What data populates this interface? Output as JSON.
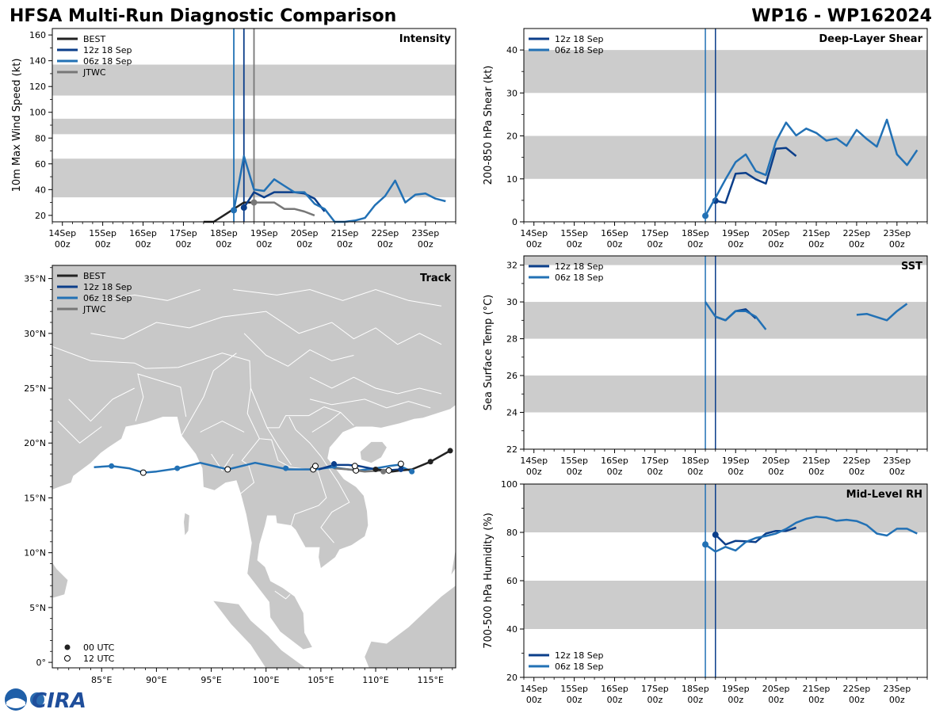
{
  "header": {
    "title": "HFSA Multi-Run Diagnostic Comparison",
    "storm_id": "WP16 - WP162024"
  },
  "logo": {
    "text": "CIRA"
  },
  "colors": {
    "best": "#222222",
    "run12": "#0b3e8a",
    "run06": "#2271b5",
    "jtwc": "#777777",
    "band": "#cccccc",
    "land": "#c8c8c8",
    "border": "#ffffff"
  },
  "time_axis": {
    "labels": [
      {
        "day": "14Sep",
        "hour": "00z",
        "t": 0
      },
      {
        "day": "15Sep",
        "hour": "00z",
        "t": 1
      },
      {
        "day": "16Sep",
        "hour": "00z",
        "t": 2
      },
      {
        "day": "17Sep",
        "hour": "00z",
        "t": 3
      },
      {
        "day": "18Sep",
        "hour": "00z",
        "t": 4
      },
      {
        "day": "19Sep",
        "hour": "00z",
        "t": 5
      },
      {
        "day": "20Sep",
        "hour": "00z",
        "t": 6
      },
      {
        "day": "21Sep",
        "hour": "00z",
        "t": 7
      },
      {
        "day": "22Sep",
        "hour": "00z",
        "t": 8
      },
      {
        "day": "23Sep",
        "hour": "00z",
        "t": 9
      }
    ],
    "range": [
      -0.25,
      9.75
    ]
  },
  "chart_data": [
    {
      "id": "intensity",
      "type": "line",
      "title": "Intensity",
      "ylabel": "10m Max Wind Speed (kt)",
      "ylim": [
        15,
        165
      ],
      "yticks": [
        20,
        40,
        60,
        80,
        100,
        120,
        140,
        160
      ],
      "bands": [
        [
          34,
          64
        ],
        [
          83,
          95
        ],
        [
          113,
          137
        ]
      ],
      "vlines": [
        {
          "t": 4.25,
          "color_key": "run06",
          "width": 1.8
        },
        {
          "t": 4.5,
          "color_key": "run12",
          "width": 1.8
        },
        {
          "t": 4.75,
          "color_key": "jtwc",
          "width": 1.8
        }
      ],
      "legend": [
        {
          "label": "BEST",
          "color_key": "best"
        },
        {
          "label": "12z 18 Sep",
          "color_key": "run12"
        },
        {
          "label": "06z 18 Sep",
          "color_key": "run06"
        },
        {
          "label": "JTWC",
          "color_key": "jtwc"
        }
      ],
      "series": [
        {
          "name": "BEST",
          "color_key": "best",
          "t": [
            3.5,
            3.75,
            4.0,
            4.25,
            4.5,
            4.75
          ],
          "y": [
            15,
            15,
            20,
            25,
            30,
            30
          ]
        },
        {
          "name": "JTWC",
          "color_key": "jtwc",
          "t": [
            4.75,
            5.0,
            5.25,
            5.5,
            5.75,
            6.0,
            6.25
          ],
          "y": [
            30,
            30,
            30,
            25,
            25,
            23,
            20
          ],
          "marker_t": 4.75,
          "marker_y": 30
        },
        {
          "name": "12z 18 Sep",
          "color_key": "run12",
          "t": [
            4.5,
            4.75,
            5.0,
            5.25,
            5.5,
            5.75,
            6.0,
            6.25,
            6.5
          ],
          "y": [
            26,
            38,
            34,
            38,
            38,
            38,
            37,
            33,
            23
          ],
          "marker_t": 4.5,
          "marker_y": 26
        },
        {
          "name": "06z 18 Sep",
          "color_key": "run06",
          "t": [
            4.25,
            4.5,
            4.75,
            5.0,
            5.25,
            5.5,
            5.75,
            6.0,
            6.25,
            6.5,
            6.75,
            7.0,
            7.25,
            7.5,
            7.75,
            8.0,
            8.25,
            8.5,
            8.75,
            9.0,
            9.25,
            9.5
          ],
          "y": [
            24,
            66,
            40,
            39,
            48,
            43,
            38,
            38,
            29,
            25,
            15,
            15,
            16,
            18,
            28,
            35,
            47,
            30,
            36,
            37,
            33,
            31
          ],
          "marker_t": 4.25,
          "marker_y": 24
        }
      ]
    },
    {
      "id": "shear",
      "type": "line",
      "title": "Deep-Layer Shear",
      "ylabel": "200-850 hPa Shear (kt)",
      "ylim": [
        0,
        45
      ],
      "yticks": [
        0,
        10,
        20,
        30,
        40
      ],
      "bands": [
        [
          10,
          20
        ],
        [
          30,
          40
        ]
      ],
      "vlines": [
        {
          "t": 4.25,
          "color_key": "run06",
          "width": 1.5
        },
        {
          "t": 4.5,
          "color_key": "run12",
          "width": 1.5
        }
      ],
      "legend": [
        {
          "label": "12z 18 Sep",
          "color_key": "run12"
        },
        {
          "label": "06z 18 Sep",
          "color_key": "run06"
        }
      ],
      "series": [
        {
          "name": "12z 18 Sep",
          "color_key": "run12",
          "t": [
            4.5,
            4.75,
            5.0,
            5.25,
            5.5,
            5.75,
            6.0,
            6.25,
            6.5
          ],
          "y": [
            4.9,
            4.4,
            11.2,
            11.4,
            9.9,
            8.9,
            17.0,
            17.2,
            15.3
          ],
          "marker_t": 4.5,
          "marker_y": 4.9
        },
        {
          "name": "06z 18 Sep",
          "color_key": "run06",
          "t": [
            4.25,
            4.5,
            4.75,
            5.0,
            5.25,
            5.5,
            5.75,
            6.0,
            6.25,
            6.5,
            6.75,
            7.0,
            7.25,
            7.5,
            7.75,
            8.0,
            8.25,
            8.5,
            8.75,
            9.0,
            9.25,
            9.5
          ],
          "y": [
            1.4,
            5.6,
            9.9,
            13.9,
            15.7,
            11.8,
            10.9,
            18.7,
            23.1,
            20.1,
            21.7,
            20.7,
            18.9,
            19.4,
            17.7,
            21.4,
            19.3,
            17.5,
            23.8,
            15.7,
            13.2,
            16.7
          ],
          "marker_t": 4.25,
          "marker_y": 1.4
        }
      ]
    },
    {
      "id": "track",
      "type": "scatter",
      "title": "Track",
      "x_ticks": [
        "85°E",
        "90°E",
        "95°E",
        "100°E",
        "105°E",
        "110°E",
        "115°E"
      ],
      "x_tick_values": [
        85,
        90,
        95,
        100,
        105,
        110,
        115
      ],
      "y_ticks": [
        "0°",
        "5°N",
        "10°N",
        "15°N",
        "20°N",
        "25°N",
        "30°N",
        "35°N"
      ],
      "y_tick_values": [
        0,
        5,
        10,
        15,
        20,
        25,
        30,
        35
      ],
      "xlim": [
        80.5,
        117.3
      ],
      "ylim": [
        -0.5,
        36.2
      ],
      "legend": [
        {
          "label": "BEST",
          "color_key": "best"
        },
        {
          "label": "12z 18 Sep",
          "color_key": "run12"
        },
        {
          "label": "06z 18 Sep",
          "color_key": "run06"
        },
        {
          "label": "JTWC",
          "color_key": "jtwc"
        }
      ],
      "marker_legend": [
        {
          "label": "00 UTC",
          "filled": true
        },
        {
          "label": "12 UTC",
          "filled": false
        }
      ],
      "series": [
        {
          "name": "BEST",
          "color_key": "best",
          "lon": [
            116.8,
            115.0,
            113.3,
            112.3,
            111.5,
            110.7,
            110.0
          ],
          "lat": [
            19.3,
            18.3,
            17.6,
            17.5,
            17.4,
            17.5,
            17.6
          ],
          "markers": [
            [
              116.8,
              19.3,
              "f"
            ],
            [
              115.0,
              18.3,
              "f"
            ],
            [
              112.3,
              18.1,
              "o"
            ],
            [
              110.0,
              17.6,
              "f"
            ]
          ]
        },
        {
          "name": "JTWC",
          "color_key": "jtwc",
          "lon": [
            110.7,
            109.0,
            107.5,
            106.2
          ],
          "lat": [
            17.5,
            17.4,
            17.6,
            17.7
          ],
          "markers": [
            [
              110.7,
              17.4,
              "f"
            ]
          ]
        },
        {
          "name": "12z 18 Sep",
          "color_key": "run12",
          "lon": [
            112.3,
            111.0,
            110.0,
            108.5,
            107.5,
            106.2,
            105.5,
            104.8
          ],
          "lat": [
            17.6,
            17.5,
            17.6,
            17.9,
            18.0,
            18.0,
            17.8,
            17.6
          ],
          "markers": [
            [
              112.3,
              17.6,
              "f"
            ],
            [
              108.1,
              17.9,
              "o"
            ],
            [
              106.2,
              18.1,
              "f"
            ],
            [
              104.5,
              17.9,
              "o"
            ]
          ]
        },
        {
          "name": "06z 18 Sep",
          "color_key": "run06",
          "lon": [
            113.3,
            112.0,
            111.2,
            110.0,
            108.5,
            107.5,
            106.0,
            104.5,
            102.0,
            99.0,
            96.5,
            94.0,
            92.0,
            90.0,
            88.8,
            87.5,
            85.9,
            84.3
          ],
          "lat": [
            17.4,
            18.0,
            17.9,
            17.7,
            17.5,
            17.6,
            17.8,
            17.6,
            17.6,
            18.2,
            17.6,
            18.2,
            17.7,
            17.4,
            17.3,
            17.7,
            17.9,
            17.8
          ],
          "markers": [
            [
              113.3,
              17.4,
              "f"
            ],
            [
              111.2,
              17.5,
              "o"
            ],
            [
              108.2,
              17.5,
              "o"
            ],
            [
              106.2,
              17.9,
              "f"
            ],
            [
              104.3,
              17.6,
              "o"
            ],
            [
              101.8,
              17.7,
              "f"
            ],
            [
              96.5,
              17.6,
              "o"
            ],
            [
              91.9,
              17.7,
              "f"
            ],
            [
              88.8,
              17.3,
              "o"
            ],
            [
              85.9,
              17.9,
              "f"
            ]
          ]
        }
      ]
    },
    {
      "id": "sst",
      "type": "line",
      "title": "SST",
      "ylabel": "Sea Surface Temp (°C)",
      "ylim": [
        22,
        32.5
      ],
      "yticks": [
        22,
        24,
        26,
        28,
        30,
        32
      ],
      "bands": [
        [
          24,
          26
        ],
        [
          28,
          30
        ],
        [
          32,
          32.5
        ]
      ],
      "vlines": [
        {
          "t": 4.25,
          "color_key": "run06",
          "width": 1.5
        },
        {
          "t": 4.5,
          "color_key": "run12",
          "width": 1.5
        }
      ],
      "legend": [
        {
          "label": "12z 18 Sep",
          "color_key": "run12"
        },
        {
          "label": "06z 18 Sep",
          "color_key": "run06"
        }
      ],
      "series": [
        {
          "name": "12z 18 Sep",
          "color_key": "run12",
          "t": [
            4.5,
            4.75,
            5.0,
            5.25,
            5.5
          ],
          "y": [
            29.2,
            29.0,
            29.5,
            29.6,
            29.1
          ]
        },
        {
          "name": "06z 18 Sep",
          "color_key": "run06",
          "t": [
            4.25,
            4.5,
            4.75,
            5.0,
            5.25,
            5.5,
            5.75
          ],
          "y": [
            30.0,
            29.2,
            29.0,
            29.5,
            29.5,
            29.2,
            28.5
          ]
        },
        {
          "name": "06z 18 Sep (late)",
          "color_key": "run06",
          "t": [
            8.0,
            8.25,
            8.75,
            9.0,
            9.25
          ],
          "y": [
            29.3,
            29.35,
            29.0,
            29.5,
            29.9
          ]
        }
      ]
    },
    {
      "id": "rh",
      "type": "line",
      "title": "Mid-Level RH",
      "ylabel": "700-500 hPa Humidity (%)",
      "ylim": [
        20,
        100
      ],
      "yticks": [
        20,
        40,
        60,
        80,
        100
      ],
      "bands": [
        [
          40,
          60
        ],
        [
          80,
          100
        ]
      ],
      "vlines": [
        {
          "t": 4.25,
          "color_key": "run06",
          "width": 1.5
        },
        {
          "t": 4.5,
          "color_key": "run12",
          "width": 1.5
        }
      ],
      "legend_position": "bottom-left",
      "legend": [
        {
          "label": "12z 18 Sep",
          "color_key": "run12"
        },
        {
          "label": "06z 18 Sep",
          "color_key": "run06"
        }
      ],
      "series": [
        {
          "name": "12z 18 Sep",
          "color_key": "run12",
          "t": [
            4.5,
            4.75,
            5.0,
            5.25,
            5.5,
            5.75,
            6.0,
            6.25,
            6.5
          ],
          "y": [
            79,
            75,
            76.5,
            76.3,
            76,
            79.5,
            80.6,
            80.6,
            82
          ],
          "marker_t": 4.5,
          "marker_y": 79
        },
        {
          "name": "06z 18 Sep",
          "color_key": "run06",
          "t": [
            4.25,
            4.5,
            4.75,
            5.0,
            5.25,
            5.5,
            5.75,
            6.0,
            6.25,
            6.5,
            6.75,
            7.0,
            7.25,
            7.5,
            7.75,
            8.0,
            8.25,
            8.5,
            8.75,
            9.0,
            9.25,
            9.5
          ],
          "y": [
            75,
            72,
            74,
            72.5,
            76,
            77.7,
            78.5,
            79.5,
            81.4,
            84,
            85.6,
            86.5,
            86.1,
            84.8,
            85.2,
            84.7,
            83,
            79.5,
            78.7,
            81.5,
            81.5,
            79.5
          ],
          "marker_t": 4.25,
          "marker_y": 75
        }
      ]
    }
  ]
}
